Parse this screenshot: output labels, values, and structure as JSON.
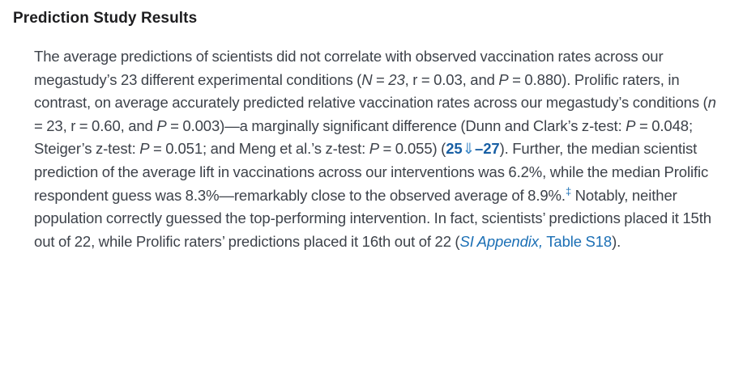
{
  "page": {
    "heading": "Prediction Study Results"
  },
  "colors": {
    "heading": "#1e1e20",
    "body": "#3d424a",
    "link": "#1b6fb5",
    "citation": "#185fa4",
    "citation_arrow": "#3a87c8",
    "background": "#ffffff"
  },
  "paragraph": {
    "segments": [
      {
        "text": "The average predictions of scientists did not correlate with observed vaccination rates across our megastudy’s 23 different experimental conditions (",
        "style": "plain",
        "name": "body-text",
        "interactable": false
      },
      {
        "text": "N",
        "style": "italic",
        "name": "variable-N",
        "interactable": false
      },
      {
        "text": " = ",
        "style": "plain",
        "name": "body-text",
        "interactable": false
      },
      {
        "text": "23",
        "style": "italic",
        "name": "value-sample-size",
        "interactable": false
      },
      {
        "text": ", r = 0.03, and ",
        "style": "plain",
        "name": "body-text",
        "interactable": false
      },
      {
        "text": "P",
        "style": "italic",
        "name": "variable-P",
        "interactable": false
      },
      {
        "text": " = 0.880). Prolific raters, in contrast, on average accurately predicted relative vaccination rates across our megastudy’s conditions (",
        "style": "plain",
        "name": "body-text",
        "interactable": false
      },
      {
        "text": "n",
        "style": "italic",
        "name": "variable-n",
        "interactable": false
      },
      {
        "text": " = 23, r = 0.60, and ",
        "style": "plain",
        "name": "body-text",
        "interactable": false
      },
      {
        "text": "P",
        "style": "italic",
        "name": "variable-P",
        "interactable": false
      },
      {
        "text": " = 0.003)—a marginally significant difference (Dunn and Clark’s z-test: ",
        "style": "plain",
        "name": "body-text",
        "interactable": false
      },
      {
        "text": "P",
        "style": "italic",
        "name": "variable-P",
        "interactable": false
      },
      {
        "text": " = 0.048; Steiger’s z-test: ",
        "style": "plain",
        "name": "body-text",
        "interactable": false
      },
      {
        "text": "P",
        "style": "italic",
        "name": "variable-P",
        "interactable": false
      },
      {
        "text": " = 0.051; and Meng et al.’s z-test: ",
        "style": "plain",
        "name": "body-text",
        "interactable": false
      },
      {
        "text": "P",
        "style": "italic",
        "name": "variable-P",
        "interactable": false
      },
      {
        "text": " = 0.055) (",
        "style": "plain",
        "name": "body-text",
        "interactable": false
      },
      {
        "text": "25",
        "style": "citation",
        "name": "citation-ref-25-link",
        "interactable": true
      },
      {
        "text": "⇓",
        "style": "citation-arrow",
        "name": "citation-expand-arrow-icon",
        "interactable": true
      },
      {
        "text": "–27",
        "style": "citation",
        "name": "citation-ref-27-link",
        "interactable": true
      },
      {
        "text": "). Further, the median scientist prediction of the average lift in vaccinations across our interventions was 6.2%, while the median Prolific respondent guess was 8.3%—remarkably close to the observed average of 8.9%.",
        "style": "plain",
        "name": "body-text",
        "interactable": false
      },
      {
        "text": "‡",
        "style": "sup-link",
        "name": "footnote-double-dagger-link",
        "interactable": true
      },
      {
        "text": " Notably, neither population correctly guessed the top-performing intervention. In fact, scientists’ predictions placed it 15th out of 22, while Prolific raters’ predictions placed it 16th out of 22 (",
        "style": "plain",
        "name": "body-text",
        "interactable": false
      },
      {
        "text": "SI Appendix,",
        "style": "link-italic",
        "name": "si-appendix-link",
        "interactable": true
      },
      {
        "text": " ",
        "style": "plain",
        "name": "body-text",
        "interactable": false
      },
      {
        "text": "Table S18",
        "style": "link",
        "name": "table-s18-link",
        "interactable": true
      },
      {
        "text": ").",
        "style": "plain",
        "name": "body-text",
        "interactable": false
      }
    ]
  }
}
